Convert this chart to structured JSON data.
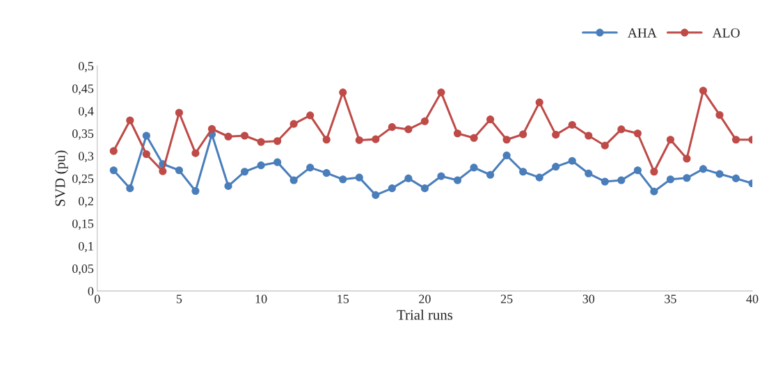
{
  "chart_data": {
    "type": "line",
    "xlabel": "Trial runs",
    "ylabel": "SVD (pu)",
    "x": [
      1,
      2,
      3,
      4,
      5,
      6,
      7,
      8,
      9,
      10,
      11,
      12,
      13,
      14,
      15,
      16,
      17,
      18,
      19,
      20,
      21,
      22,
      23,
      24,
      25,
      26,
      27,
      28,
      29,
      30,
      31,
      32,
      33,
      34,
      35,
      36,
      37,
      38,
      39,
      40
    ],
    "series": [
      {
        "name": "AHA",
        "color": "#4a7ebb",
        "values": [
          0.268,
          0.228,
          0.345,
          0.282,
          0.268,
          0.222,
          0.348,
          0.233,
          0.265,
          0.279,
          0.286,
          0.246,
          0.274,
          0.262,
          0.248,
          0.252,
          0.213,
          0.228,
          0.25,
          0.228,
          0.255,
          0.246,
          0.274,
          0.258,
          0.301,
          0.265,
          0.252,
          0.276,
          0.289,
          0.261,
          0.243,
          0.246,
          0.268,
          0.221,
          0.248,
          0.251,
          0.271,
          0.26,
          0.25,
          0.239
        ]
      },
      {
        "name": "ALO",
        "color": "#be4b48",
        "values": [
          0.311,
          0.379,
          0.304,
          0.266,
          0.396,
          0.306,
          0.36,
          0.343,
          0.345,
          0.331,
          0.333,
          0.371,
          0.39,
          0.336,
          0.441,
          0.335,
          0.337,
          0.364,
          0.359,
          0.377,
          0.441,
          0.35,
          0.34,
          0.381,
          0.336,
          0.348,
          0.419,
          0.347,
          0.369,
          0.345,
          0.323,
          0.359,
          0.35,
          0.265,
          0.336,
          0.294,
          0.445,
          0.391,
          0.336,
          0.336
        ]
      }
    ],
    "xlim": [
      0,
      40
    ],
    "xticks": [
      0,
      5,
      10,
      15,
      20,
      25,
      30,
      35,
      40
    ],
    "ylim": [
      0,
      0.5
    ],
    "yticks": [
      0,
      {
        "value": 0.05,
        "label": "0,05"
      },
      {
        "value": 0.1,
        "label": "0,1"
      },
      {
        "value": 0.15,
        "label": "0,15"
      },
      {
        "value": 0.2,
        "label": "0,2"
      },
      {
        "value": 0.25,
        "label": "0,25"
      },
      {
        "value": 0.3,
        "label": "0,3"
      },
      {
        "value": 0.35,
        "label": "0,35"
      },
      {
        "value": 0.4,
        "label": "0,4"
      },
      {
        "value": 0.45,
        "label": "0,45"
      },
      {
        "value": 0.5,
        "label": "0,5"
      }
    ],
    "legend": "top right",
    "marker": "circle",
    "line_style": "solid",
    "grid": false
  }
}
